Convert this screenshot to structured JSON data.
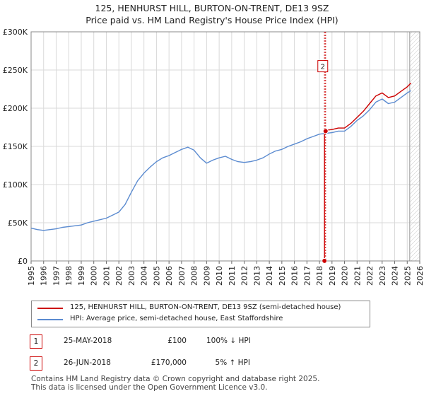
{
  "title_line1": "125, HENHURST HILL, BURTON-ON-TRENT, DE13 9SZ",
  "title_line2": "Price paid vs. HM Land Registry's House Price Index (HPI)",
  "colors": {
    "property": "#cc0000",
    "hpi": "#5b8bd0",
    "grid": "#d9d9d9",
    "marker_line": "#cc0000",
    "future_hatch": "#c8c8c8"
  },
  "chart_data": {
    "type": "line",
    "xlim": [
      1995,
      2026
    ],
    "ylim": [
      0,
      300000
    ],
    "x_ticks": [
      "1995",
      "1996",
      "1997",
      "1998",
      "1999",
      "2000",
      "2001",
      "2002",
      "2003",
      "2004",
      "2005",
      "2006",
      "2007",
      "2008",
      "2009",
      "2010",
      "2011",
      "2012",
      "2013",
      "2014",
      "2015",
      "2016",
      "2017",
      "2018",
      "2019",
      "2020",
      "2021",
      "2022",
      "2023",
      "2024",
      "2025",
      "2026"
    ],
    "y_ticks": [
      {
        "value": 0,
        "label": "£0"
      },
      {
        "value": 50000,
        "label": "£50K"
      },
      {
        "value": 100000,
        "label": "£100K"
      },
      {
        "value": 150000,
        "label": "£150K"
      },
      {
        "value": 200000,
        "label": "£200K"
      },
      {
        "value": 250000,
        "label": "£250K"
      },
      {
        "value": 300000,
        "label": "£300K"
      }
    ],
    "grid": true,
    "future_from": 2025.2,
    "series": [
      {
        "name": "HPI: Average price, semi-detached house, East Staffordshire",
        "key": "hpi",
        "x": [
          1995.0,
          1995.5,
          1996.0,
          1996.5,
          1997.0,
          1997.5,
          1998.0,
          1998.5,
          1999.0,
          1999.5,
          2000.0,
          2000.5,
          2001.0,
          2001.5,
          2002.0,
          2002.5,
          2003.0,
          2003.5,
          2004.0,
          2004.5,
          2005.0,
          2005.5,
          2006.0,
          2006.5,
          2007.0,
          2007.5,
          2008.0,
          2008.5,
          2009.0,
          2009.5,
          2010.0,
          2010.5,
          2011.0,
          2011.5,
          2012.0,
          2012.5,
          2013.0,
          2013.5,
          2014.0,
          2014.5,
          2015.0,
          2015.5,
          2016.0,
          2016.5,
          2017.0,
          2017.5,
          2018.0,
          2018.5,
          2019.0,
          2019.5,
          2020.0,
          2020.5,
          2021.0,
          2021.5,
          2022.0,
          2022.5,
          2023.0,
          2023.5,
          2024.0,
          2024.5,
          2025.0,
          2025.3
        ],
        "values": [
          43000,
          41000,
          40000,
          41000,
          42000,
          44000,
          45000,
          46000,
          47000,
          50000,
          52000,
          54000,
          56000,
          60000,
          64000,
          74000,
          90000,
          105000,
          115000,
          123000,
          130000,
          135000,
          138000,
          142000,
          146000,
          149000,
          145000,
          135000,
          128000,
          132000,
          135000,
          137000,
          133000,
          130000,
          129000,
          130000,
          132000,
          135000,
          140000,
          144000,
          146000,
          150000,
          153000,
          156000,
          160000,
          163000,
          166000,
          167000,
          168000,
          170000,
          170000,
          176000,
          184000,
          190000,
          198000,
          208000,
          212000,
          206000,
          208000,
          214000,
          220000,
          223000
        ]
      },
      {
        "name": "125, HENHURST HILL, BURTON-ON-TRENT, DE13 9SZ (semi-detached house)",
        "key": "property",
        "x": [
          2018.4,
          2018.4,
          2018.49,
          2018.5,
          2019.0,
          2019.5,
          2020.0,
          2020.5,
          2021.0,
          2021.5,
          2022.0,
          2022.5,
          2023.0,
          2023.5,
          2024.0,
          2024.5,
          2025.0,
          2025.3
        ],
        "values": [
          100,
          170000,
          170000,
          171000,
          172000,
          174000,
          174000,
          180000,
          188000,
          196000,
          206000,
          216000,
          220000,
          214000,
          216000,
          222000,
          228000,
          233000
        ]
      }
    ],
    "transactions": [
      {
        "id": "1",
        "date": "25-MAY-2018",
        "price": "£100",
        "hpi": "100% ↓ HPI",
        "x": 2018.4,
        "y": 100
      },
      {
        "id": "2",
        "date": "26-JUN-2018",
        "price": "£170,000",
        "hpi": "5% ↑ HPI",
        "x": 2018.49,
        "y": 170000
      }
    ]
  },
  "legend": {
    "property_label": "125, HENHURST HILL, BURTON-ON-TRENT, DE13 9SZ (semi-detached house)",
    "hpi_label": "HPI: Average price, semi-detached house, East Staffordshire"
  },
  "footer": {
    "line1": "Contains HM Land Registry data © Crown copyright and database right 2025.",
    "line2": "This data is licensed under the Open Government Licence v3.0."
  }
}
